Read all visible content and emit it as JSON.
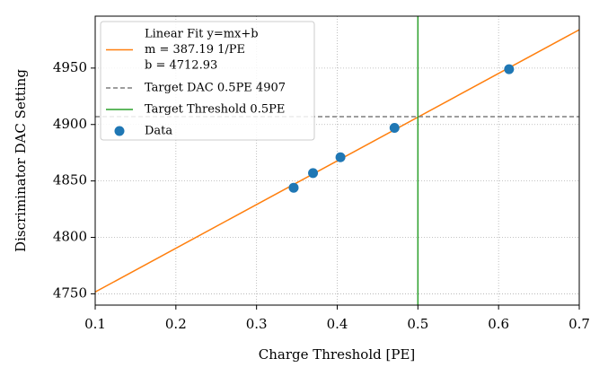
{
  "chart_data": {
    "type": "scatter",
    "xlabel": "Charge Threshold [PE]",
    "ylabel": "Discriminator DAC Setting",
    "xlim": [
      0.1,
      0.7
    ],
    "ylim": [
      4740,
      4996
    ],
    "xticks": [
      0.1,
      0.2,
      0.3,
      0.4,
      0.5,
      0.6,
      0.7
    ],
    "yticks": [
      4750,
      4800,
      4850,
      4900,
      4950
    ],
    "grid": true,
    "legend": "upper left",
    "fit_labels": [
      "m = 387.19 1/PE",
      "b = 4712.93"
    ],
    "series": [
      {
        "name": "Linear Fit y=mx+b",
        "type": "line",
        "color": "#ff7f0e",
        "x": [
          0.1,
          0.7
        ],
        "values": [
          4751.65,
          4983.96
        ]
      },
      {
        "name": "Target DAC 0.5PE 4907",
        "type": "hline",
        "color": "#7f7f7f",
        "values": [
          4907
        ]
      },
      {
        "name": "Target Threshold 0.5PE",
        "type": "vline",
        "color": "#2ca02c",
        "x": [
          0.5
        ]
      },
      {
        "name": "Data",
        "type": "scatter",
        "color": "#1f77b4",
        "x": [
          0.346,
          0.37,
          0.404,
          0.471,
          0.613
        ],
        "values": [
          4844,
          4857,
          4871,
          4897,
          4949
        ]
      }
    ]
  }
}
